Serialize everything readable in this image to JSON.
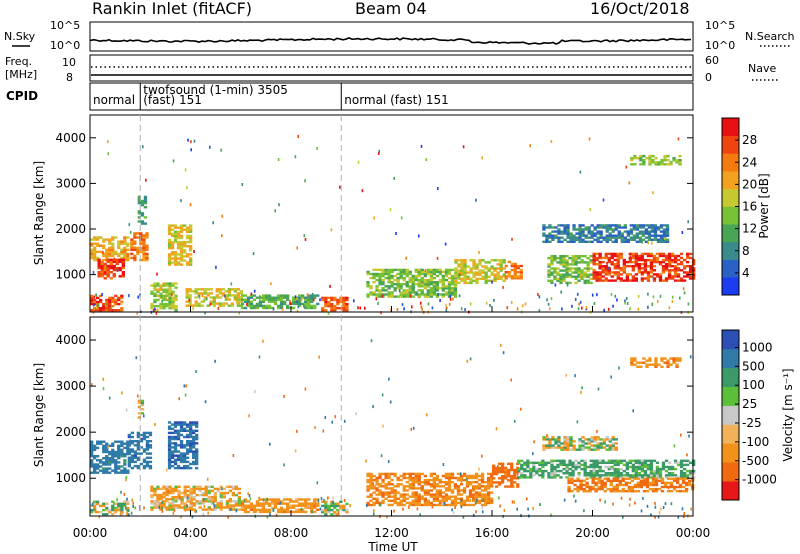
{
  "header": {
    "radar": "Rankin Inlet (fitACF)",
    "beam": "Beam 04",
    "date": "16/Oct/2018"
  },
  "strips": {
    "nsky_label": "N.Sky",
    "nsearch_label": "N.Search",
    "noise_ticks": [
      "10^5",
      "10^0"
    ],
    "freq_label_1": "Freq.",
    "freq_label_2": "[MHz]",
    "freq_ticks": [
      "10",
      "8"
    ],
    "nave_label": "Nave",
    "nave_ticks": [
      "60",
      "0"
    ],
    "cpid_label": "CPID",
    "cpid_segments": [
      {
        "name": "normal",
        "start_h": 0.0,
        "end_h": 2.0
      },
      {
        "name": "twofsound (1-min) 3505",
        "sub": "(fast) 151",
        "start_h": 2.0,
        "end_h": 10.0
      },
      {
        "name": "normal (fast) 151",
        "start_h": 10.0,
        "end_h": 24.0
      }
    ]
  },
  "colors": {
    "power_scale": [
      "#1b3cf0",
      "#2a61c4",
      "#3a8c8c",
      "#4aa456",
      "#76c234",
      "#c6c832",
      "#f2a21e",
      "#f57a10",
      "#ef4410",
      "#e81010"
    ],
    "velocity_scale": [
      "#2b4fb5",
      "#2f7aa8",
      "#3b9a68",
      "#5cbf3a",
      "#c8c8c8",
      "#f3b25a",
      "#f2921a",
      "#ef6a10",
      "#e81818"
    ],
    "dash": "#b0b0b0"
  },
  "power_colorbar": {
    "label": "Power [dB]",
    "ticks": [
      "28",
      "24",
      "20",
      "16",
      "12",
      "8",
      "4"
    ]
  },
  "velocity_colorbar": {
    "label": "Velocity [m s⁻¹]",
    "ticks": [
      "1000",
      "500",
      "100",
      "25",
      "-25",
      "-100",
      "-500",
      "-1000"
    ]
  },
  "chart_data": [
    {
      "type": "heatmap",
      "title": "",
      "ylabel": "Slant Range [km]",
      "xlabel": "",
      "ylim": [
        180,
        4500
      ],
      "xlim_hours": [
        0,
        24
      ],
      "y_ticks": [
        1000,
        2000,
        3000,
        4000
      ],
      "quantity": "Power [dB]",
      "value_range": [
        0,
        32
      ],
      "regions": [
        {
          "t": [
            0,
            1.5
          ],
          "r": [
            1300,
            1800
          ],
          "v": 20
        },
        {
          "t": [
            0.3,
            1.3
          ],
          "r": [
            900,
            1350
          ],
          "v": 28
        },
        {
          "t": [
            0,
            1.3
          ],
          "r": [
            200,
            550
          ],
          "v": 27
        },
        {
          "t": [
            1.9,
            2.2
          ],
          "r": [
            2100,
            2700
          ],
          "v": 10
        },
        {
          "t": [
            1.6,
            2.3
          ],
          "r": [
            1300,
            1900
          ],
          "v": 24
        },
        {
          "t": [
            3.1,
            4.0
          ],
          "r": [
            1200,
            2100
          ],
          "v": 19
        },
        {
          "t": [
            2.4,
            3.4
          ],
          "r": [
            200,
            800
          ],
          "v": 16
        },
        {
          "t": [
            3.8,
            6.0
          ],
          "r": [
            300,
            700
          ],
          "v": 18
        },
        {
          "t": [
            6.0,
            9.0
          ],
          "r": [
            250,
            550
          ],
          "v": 12
        },
        {
          "t": [
            9.2,
            10.2
          ],
          "r": [
            200,
            500
          ],
          "v": 26
        },
        {
          "t": [
            11.0,
            14.5
          ],
          "r": [
            500,
            1100
          ],
          "v": 14
        },
        {
          "t": [
            14.5,
            16.5
          ],
          "r": [
            800,
            1300
          ],
          "v": 18
        },
        {
          "t": [
            16.5,
            17.2
          ],
          "r": [
            900,
            1300
          ],
          "v": 24
        },
        {
          "t": [
            18.2,
            20.0
          ],
          "r": [
            800,
            1400
          ],
          "v": 14
        },
        {
          "t": [
            20.0,
            24.0
          ],
          "r": [
            850,
            1450
          ],
          "v": 28
        },
        {
          "t": [
            18.0,
            23.0
          ],
          "r": [
            1700,
            2100
          ],
          "v": 7
        },
        {
          "t": [
            21.5,
            23.5
          ],
          "r": [
            3400,
            3600
          ],
          "v": 15
        }
      ]
    },
    {
      "type": "heatmap",
      "title": "",
      "ylabel": "Slant Range [km]",
      "xlabel": "Time UT",
      "ylim": [
        180,
        4500
      ],
      "xlim_hours": [
        0,
        24
      ],
      "y_ticks": [
        1000,
        2000,
        3000,
        4000
      ],
      "x_ticks": [
        "00:00",
        "04:00",
        "08:00",
        "12:00",
        "16:00",
        "20:00",
        "00:00"
      ],
      "quantity": "Velocity [m s⁻¹]",
      "value_range": [
        -1000,
        1000
      ],
      "regions": [
        {
          "t": [
            0,
            1.5
          ],
          "r": [
            1100,
            1800
          ],
          "v": 700
        },
        {
          "t": [
            0,
            1.5
          ],
          "r": [
            200,
            500
          ],
          "v": 60
        },
        {
          "t": [
            1.5,
            2.4
          ],
          "r": [
            1200,
            2000
          ],
          "v": 800
        },
        {
          "t": [
            1.9,
            2.1
          ],
          "r": [
            2300,
            2700
          ],
          "v": 0
        },
        {
          "t": [
            3.1,
            4.2
          ],
          "r": [
            1200,
            2200
          ],
          "v": 900
        },
        {
          "t": [
            2.4,
            6.0
          ],
          "r": [
            300,
            800
          ],
          "v": -150
        },
        {
          "t": [
            6.0,
            9.0
          ],
          "r": [
            250,
            550
          ],
          "v": -300
        },
        {
          "t": [
            9.2,
            10.2
          ],
          "r": [
            200,
            500
          ],
          "v": 0
        },
        {
          "t": [
            11.0,
            16.0
          ],
          "r": [
            400,
            1100
          ],
          "v": -400
        },
        {
          "t": [
            16.0,
            17.0
          ],
          "r": [
            800,
            1300
          ],
          "v": -700
        },
        {
          "t": [
            18.0,
            21.0
          ],
          "r": [
            1600,
            1900
          ],
          "v": 0
        },
        {
          "t": [
            17.0,
            24.0
          ],
          "r": [
            1000,
            1400
          ],
          "v": 200
        },
        {
          "t": [
            19.0,
            24.0
          ],
          "r": [
            700,
            1000
          ],
          "v": -500
        },
        {
          "t": [
            21.5,
            23.5
          ],
          "r": [
            3400,
            3600
          ],
          "v": -400
        }
      ]
    }
  ]
}
